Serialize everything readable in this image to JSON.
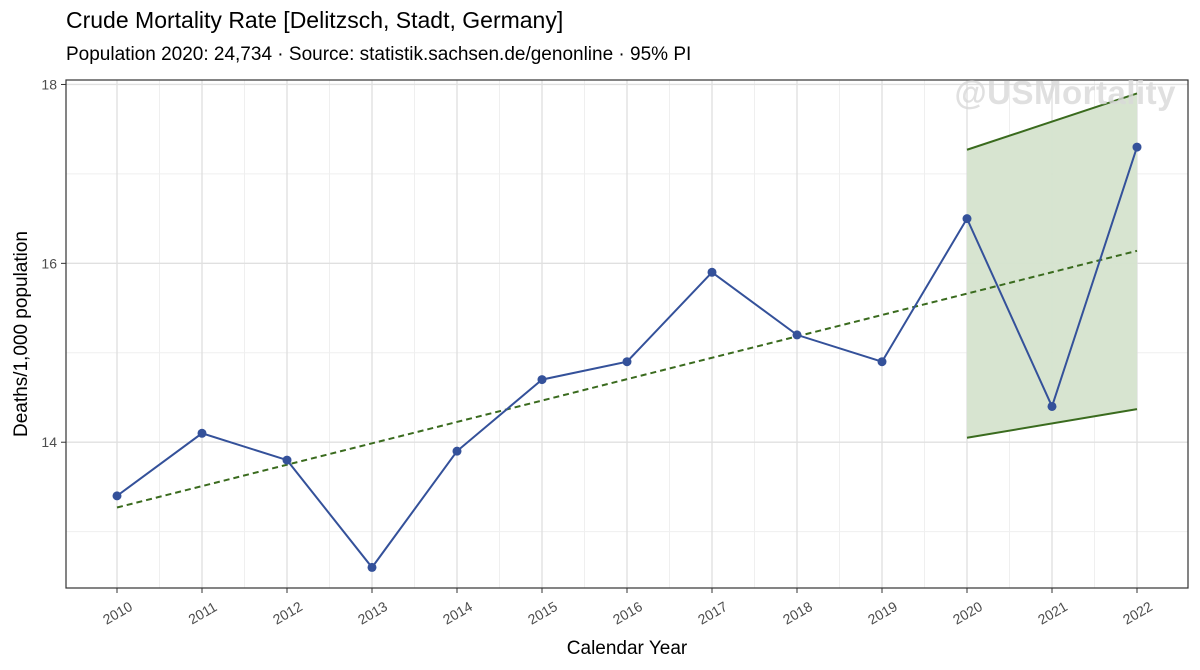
{
  "title": "Crude Mortality Rate [Delitzsch, Stadt, Germany]",
  "subtitle": "Population 2020: 24,734 · Source: statistik.sachsen.de/genonline · 95% PI",
  "watermark": "@USMortality",
  "chart_data": {
    "type": "line",
    "xlabel": "Calendar Year",
    "ylabel": "Deaths/1,000 population",
    "x": [
      2010,
      2011,
      2012,
      2013,
      2014,
      2015,
      2016,
      2017,
      2018,
      2019,
      2020,
      2021,
      2022
    ],
    "xlim": [
      2009.4,
      2022.6
    ],
    "ylim": [
      12.37,
      18.05
    ],
    "yticks": [
      14,
      16,
      18
    ],
    "grid": true,
    "series": [
      {
        "values": [
          13.4,
          14.1,
          13.8,
          12.6,
          13.9,
          14.7,
          14.9,
          15.9,
          15.2,
          14.9,
          16.5,
          14.4,
          17.3
        ],
        "color": "#34519a"
      }
    ],
    "trend": {
      "x": [
        2010,
        2022
      ],
      "values": [
        13.27,
        16.14
      ],
      "style": "dashed",
      "color": "#3a6b1e"
    },
    "prediction_interval": {
      "x": [
        2020,
        2022
      ],
      "upper": [
        17.27,
        17.9
      ],
      "lower": [
        14.05,
        14.37
      ],
      "fill": "#d5e3cd",
      "line_color": "#3a6b1e"
    }
  }
}
